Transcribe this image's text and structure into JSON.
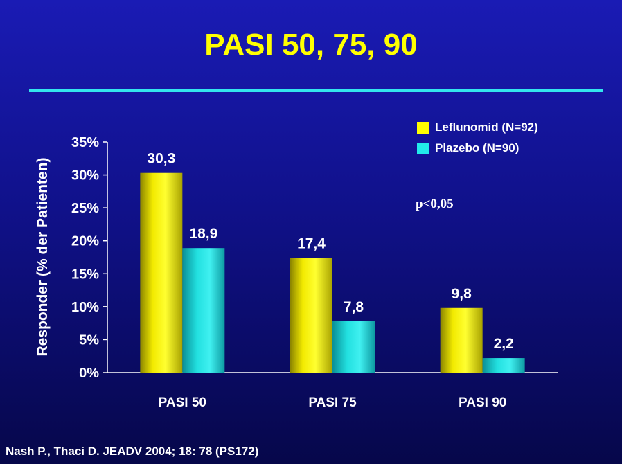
{
  "slide": {
    "title": "PASI 50, 75, 90",
    "citation": "Nash P., Thaci D.  JEADV 2004; 18: 78 (PS172)",
    "annotation": "p<0,05"
  },
  "colors": {
    "title": "#ffff00",
    "rule": "#33e6ee",
    "leflunomid": "#e8e000",
    "plazebo": "#1fd2d2"
  },
  "chart_data": {
    "type": "bar",
    "title": "",
    "ylabel": "Responder (% der Patienten)",
    "xlabel": "",
    "categories": [
      "PASI 50",
      "PASI 75",
      "PASI 90"
    ],
    "series": [
      {
        "name": "Leflunomid (N=92)",
        "values": [
          30.3,
          17.4,
          9.8
        ],
        "labels": [
          "30,3",
          "17,4",
          "9,8"
        ]
      },
      {
        "name": "Plazebo (N=90)",
        "values": [
          18.9,
          7.8,
          2.2
        ],
        "labels": [
          "18,9",
          "7,8",
          "2,2"
        ]
      }
    ],
    "ylim": [
      0,
      35
    ],
    "yticks": [
      0,
      5,
      10,
      15,
      20,
      25,
      30,
      35
    ],
    "ytick_labels": [
      "0%",
      "5%",
      "10%",
      "15%",
      "20%",
      "25%",
      "30%",
      "35%"
    ],
    "grid": false,
    "legend_position": "top-right"
  }
}
